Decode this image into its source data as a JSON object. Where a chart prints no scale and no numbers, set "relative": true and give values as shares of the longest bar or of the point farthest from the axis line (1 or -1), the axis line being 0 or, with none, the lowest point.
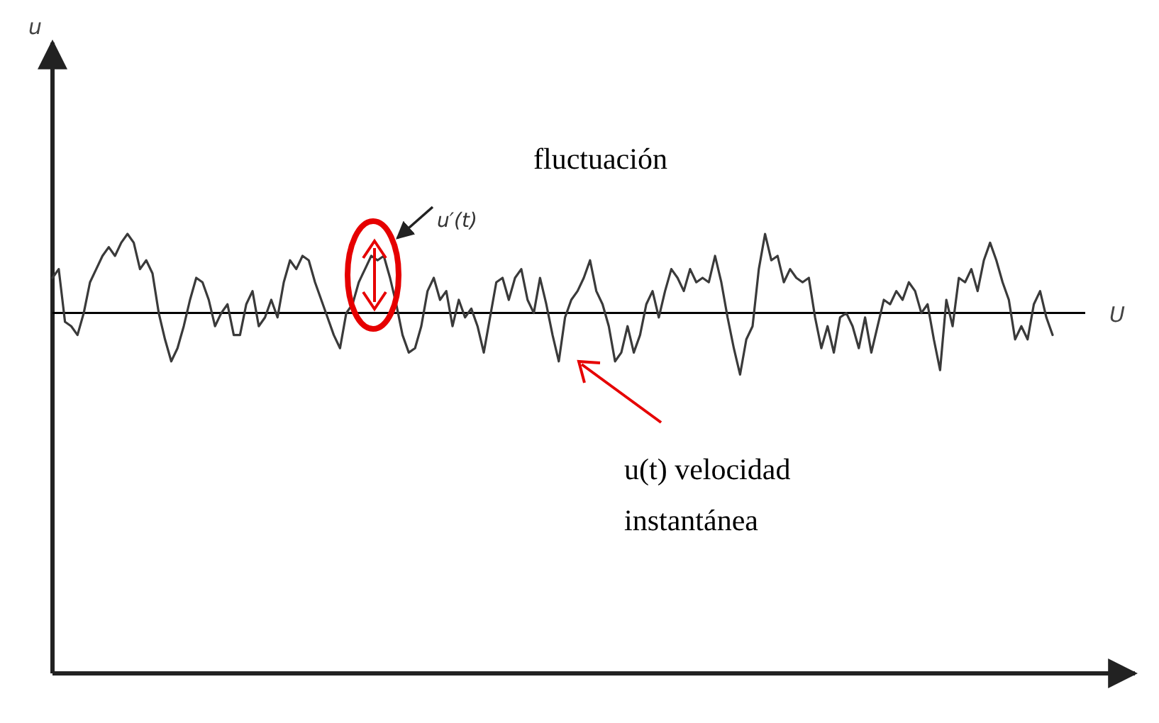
{
  "chart_data": {
    "type": "line",
    "relative": true,
    "categories": [
      null,
      null,
      null,
      null,
      null,
      null,
      null,
      null,
      null,
      null,
      null,
      null,
      null,
      null,
      null,
      null,
      null,
      null,
      null,
      null,
      null,
      null,
      null,
      null,
      null,
      null,
      null,
      null,
      null,
      null,
      null,
      null,
      null,
      null,
      null,
      null,
      null,
      null,
      null,
      null,
      null,
      null,
      null,
      null,
      null,
      null,
      null,
      null,
      null,
      null,
      null,
      null,
      null,
      null,
      null,
      null,
      null,
      null,
      null,
      null,
      null,
      null,
      null,
      null,
      null,
      null,
      null,
      null,
      null,
      null,
      null,
      null,
      null,
      null,
      null,
      null,
      null,
      null,
      null,
      null,
      null,
      null,
      null,
      null,
      null,
      null,
      null,
      null,
      null,
      null,
      null,
      null,
      null,
      null,
      null,
      null,
      null,
      null,
      null,
      null,
      null,
      null,
      null,
      null,
      null,
      null,
      null,
      null,
      null,
      null,
      null,
      null,
      null,
      null,
      null,
      null,
      null,
      null,
      null,
      null,
      null,
      null,
      null,
      null,
      null,
      null,
      null,
      null,
      null,
      null,
      null,
      null,
      null,
      null,
      null,
      null,
      null,
      null,
      null,
      null,
      null,
      null,
      null,
      null,
      null,
      null,
      null,
      null,
      null,
      null,
      null,
      null,
      null,
      null,
      null,
      null,
      null,
      null,
      null,
      null,
      null
    ],
    "series": [
      {
        "color": "#3a3a3a",
        "values": [
          0.9,
          0.92,
          0.8,
          0.79,
          0.77,
          0.82,
          0.89,
          0.92,
          0.95,
          0.97,
          0.95,
          0.98,
          1.0,
          0.98,
          0.92,
          0.94,
          0.91,
          0.82,
          0.76,
          0.71,
          0.74,
          0.79,
          0.85,
          0.9,
          0.89,
          0.85,
          0.79,
          0.82,
          0.84,
          0.77,
          0.77,
          0.84,
          0.87,
          0.79,
          0.81,
          0.85,
          0.81,
          0.89,
          0.94,
          0.92,
          0.95,
          0.94,
          0.89,
          0.85,
          0.81,
          0.77,
          0.74,
          0.82,
          0.84,
          0.89,
          0.92,
          0.95,
          0.94,
          0.95,
          0.9,
          0.84,
          0.77,
          0.73,
          0.74,
          0.79,
          0.87,
          0.9,
          0.85,
          0.87,
          0.79,
          0.85,
          0.81,
          0.83,
          0.79,
          0.73,
          0.81,
          0.89,
          0.9,
          0.85,
          0.9,
          0.92,
          0.85,
          0.82,
          0.9,
          0.84,
          0.77,
          0.71,
          0.81,
          0.85,
          0.87,
          0.9,
          0.94,
          0.87,
          0.84,
          0.79,
          0.71,
          0.73,
          0.79,
          0.73,
          0.77,
          0.84,
          0.87,
          0.81,
          0.87,
          0.92,
          0.9,
          0.87,
          0.92,
          0.89,
          0.9,
          0.89,
          0.95,
          0.89,
          0.81,
          0.74,
          0.68,
          0.76,
          0.79,
          0.92,
          1.0,
          0.94,
          0.95,
          0.89,
          0.92,
          0.9,
          0.89,
          0.9,
          0.81,
          0.74,
          0.79,
          0.73,
          0.81,
          0.82,
          0.79,
          0.74,
          0.81,
          0.73,
          0.79,
          0.85,
          0.84,
          0.87,
          0.85,
          0.89,
          0.87,
          0.82,
          0.84,
          0.76,
          0.69,
          0.85,
          0.79,
          0.9,
          0.89,
          0.92,
          0.87,
          0.94,
          0.98,
          0.94,
          0.89,
          0.85,
          0.76,
          0.79,
          0.76,
          0.84,
          0.87,
          0.81,
          0.77
        ]
      }
    ],
    "ref_lines": [
      {
        "axis": "y",
        "value": 0.82,
        "label": "U",
        "color": "#000000"
      }
    ],
    "annotations": [
      "u′(t)",
      "fluctuación",
      "u(t) velocidad instantánea",
      "u"
    ]
  }
}
